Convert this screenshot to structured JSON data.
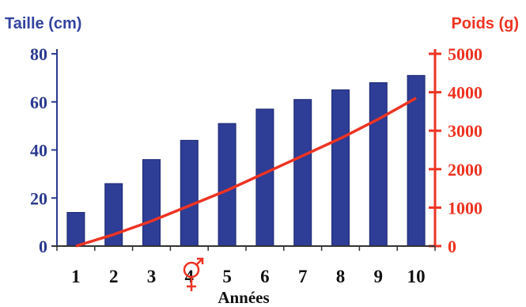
{
  "chart_data": {
    "type": "bar",
    "title": "",
    "xlabel": "Années",
    "categories": [
      "1",
      "2",
      "3",
      "4",
      "5",
      "6",
      "7",
      "8",
      "9",
      "10"
    ],
    "y_left": {
      "label": "Taille (cm)",
      "range": [
        0,
        80
      ],
      "ticks": [
        "0",
        "20",
        "40",
        "60",
        "80"
      ],
      "tick_values": [
        0,
        20,
        40,
        60,
        80
      ]
    },
    "y_right": {
      "label": "Poids (g)",
      "range": [
        0,
        5000
      ],
      "ticks": [
        "0",
        "1000",
        "2000",
        "3000",
        "4000",
        "5000"
      ],
      "tick_values": [
        0,
        1000,
        2000,
        3000,
        4000,
        5000
      ]
    },
    "series": [
      {
        "type": "bar",
        "axis": "left",
        "values": [
          14,
          26,
          36,
          44,
          51,
          57,
          61,
          65,
          68,
          71
        ]
      },
      {
        "type": "line",
        "axis": "right",
        "values": [
          0,
          300,
          650,
          1050,
          1450,
          1900,
          2350,
          2800,
          3300,
          3850
        ]
      }
    ],
    "annotations": [
      "male-female-symbol"
    ],
    "grid": false,
    "legend": "none",
    "colors": {
      "bars": "#2e3d96",
      "line": "#ee3322",
      "left_axis": "#2b3a8f",
      "right_axis": "#ee3322"
    }
  }
}
